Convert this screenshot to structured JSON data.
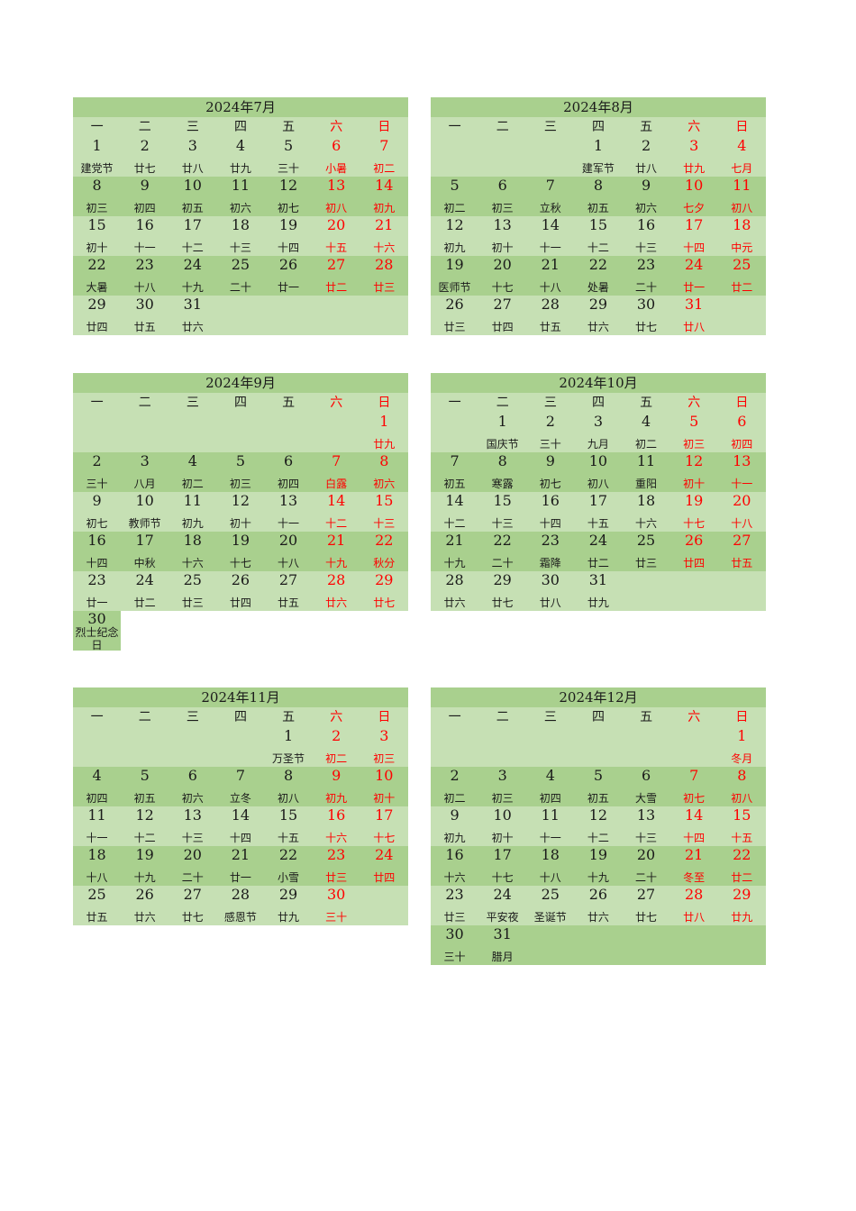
{
  "weekday_headers": [
    "一",
    "二",
    "三",
    "四",
    "五",
    "六",
    "日"
  ],
  "months": [
    {
      "title": "2024年7月",
      "weeks": [
        [
          [
            "1",
            "建党节"
          ],
          [
            "2",
            "廿七"
          ],
          [
            "3",
            "廿八"
          ],
          [
            "4",
            "廿九"
          ],
          [
            "5",
            "三十"
          ],
          [
            "6",
            "小暑"
          ],
          [
            "7",
            "初二"
          ]
        ],
        [
          [
            "8",
            "初三"
          ],
          [
            "9",
            "初四"
          ],
          [
            "10",
            "初五"
          ],
          [
            "11",
            "初六"
          ],
          [
            "12",
            "初七"
          ],
          [
            "13",
            "初八"
          ],
          [
            "14",
            "初九"
          ]
        ],
        [
          [
            "15",
            "初十"
          ],
          [
            "16",
            "十一"
          ],
          [
            "17",
            "十二"
          ],
          [
            "18",
            "十三"
          ],
          [
            "19",
            "十四"
          ],
          [
            "20",
            "十五"
          ],
          [
            "21",
            "十六"
          ]
        ],
        [
          [
            "22",
            "大暑"
          ],
          [
            "23",
            "十八"
          ],
          [
            "24",
            "十九"
          ],
          [
            "25",
            "二十"
          ],
          [
            "26",
            "廿一"
          ],
          [
            "27",
            "廿二"
          ],
          [
            "28",
            "廿三"
          ]
        ],
        [
          [
            "29",
            "廿四"
          ],
          [
            "30",
            "廿五"
          ],
          [
            "31",
            "廿六"
          ],
          null,
          null,
          null,
          null
        ]
      ]
    },
    {
      "title": "2024年8月",
      "weeks": [
        [
          null,
          null,
          null,
          [
            "1",
            "建军节"
          ],
          [
            "2",
            "廿八"
          ],
          [
            "3",
            "廿九"
          ],
          [
            "4",
            "七月"
          ]
        ],
        [
          [
            "5",
            "初二"
          ],
          [
            "6",
            "初三"
          ],
          [
            "7",
            "立秋"
          ],
          [
            "8",
            "初五"
          ],
          [
            "9",
            "初六"
          ],
          [
            "10",
            "七夕"
          ],
          [
            "11",
            "初八"
          ]
        ],
        [
          [
            "12",
            "初九"
          ],
          [
            "13",
            "初十"
          ],
          [
            "14",
            "十一"
          ],
          [
            "15",
            "十二"
          ],
          [
            "16",
            "十三"
          ],
          [
            "17",
            "十四"
          ],
          [
            "18",
            "中元"
          ]
        ],
        [
          [
            "19",
            "医师节"
          ],
          [
            "20",
            "十七"
          ],
          [
            "21",
            "十八"
          ],
          [
            "22",
            "处暑"
          ],
          [
            "23",
            "二十"
          ],
          [
            "24",
            "廿一"
          ],
          [
            "25",
            "廿二"
          ]
        ],
        [
          [
            "26",
            "廿三"
          ],
          [
            "27",
            "廿四"
          ],
          [
            "28",
            "廿五"
          ],
          [
            "29",
            "廿六"
          ],
          [
            "30",
            "廿七"
          ],
          [
            "31",
            "廿八"
          ],
          null
        ]
      ]
    },
    {
      "title": "2024年9月",
      "weeks": [
        [
          null,
          null,
          null,
          null,
          null,
          null,
          [
            "1",
            "廿九"
          ]
        ],
        [
          [
            "2",
            "三十"
          ],
          [
            "3",
            "八月"
          ],
          [
            "4",
            "初二"
          ],
          [
            "5",
            "初三"
          ],
          [
            "6",
            "初四"
          ],
          [
            "7",
            "白露"
          ],
          [
            "8",
            "初六"
          ]
        ],
        [
          [
            "9",
            "初七"
          ],
          [
            "10",
            "教师节"
          ],
          [
            "11",
            "初九"
          ],
          [
            "12",
            "初十"
          ],
          [
            "13",
            "十一"
          ],
          [
            "14",
            "十二"
          ],
          [
            "15",
            "十三"
          ]
        ],
        [
          [
            "16",
            "十四"
          ],
          [
            "17",
            "中秋"
          ],
          [
            "18",
            "十六"
          ],
          [
            "19",
            "十七"
          ],
          [
            "20",
            "十八"
          ],
          [
            "21",
            "十九"
          ],
          [
            "22",
            "秋分"
          ]
        ],
        [
          [
            "23",
            "廿一"
          ],
          [
            "24",
            "廿二"
          ],
          [
            "25",
            "廿三"
          ],
          [
            "26",
            "廿四"
          ],
          [
            "27",
            "廿五"
          ],
          [
            "28",
            "廿六"
          ],
          [
            "29",
            "廿七"
          ]
        ]
      ],
      "extra": [
        "30",
        "烈士纪念日"
      ]
    },
    {
      "title": "2024年10月",
      "weeks": [
        [
          null,
          [
            "1",
            "国庆节"
          ],
          [
            "2",
            "三十"
          ],
          [
            "3",
            "九月"
          ],
          [
            "4",
            "初二"
          ],
          [
            "5",
            "初三"
          ],
          [
            "6",
            "初四"
          ]
        ],
        [
          [
            "7",
            "初五"
          ],
          [
            "8",
            "寒露"
          ],
          [
            "9",
            "初七"
          ],
          [
            "10",
            "初八"
          ],
          [
            "11",
            "重阳"
          ],
          [
            "12",
            "初十"
          ],
          [
            "13",
            "十一"
          ]
        ],
        [
          [
            "14",
            "十二"
          ],
          [
            "15",
            "十三"
          ],
          [
            "16",
            "十四"
          ],
          [
            "17",
            "十五"
          ],
          [
            "18",
            "十六"
          ],
          [
            "19",
            "十七"
          ],
          [
            "20",
            "十八"
          ]
        ],
        [
          [
            "21",
            "十九"
          ],
          [
            "22",
            "二十"
          ],
          [
            "23",
            "霜降"
          ],
          [
            "24",
            "廿二"
          ],
          [
            "25",
            "廿三"
          ],
          [
            "26",
            "廿四"
          ],
          [
            "27",
            "廿五"
          ]
        ],
        [
          [
            "28",
            "廿六"
          ],
          [
            "29",
            "廿七"
          ],
          [
            "30",
            "廿八"
          ],
          [
            "31",
            "廿九"
          ],
          null,
          null,
          null
        ]
      ]
    },
    {
      "title": "2024年11月",
      "weeks": [
        [
          null,
          null,
          null,
          null,
          [
            "1",
            "万圣节"
          ],
          [
            "2",
            "初二"
          ],
          [
            "3",
            "初三"
          ]
        ],
        [
          [
            "4",
            "初四"
          ],
          [
            "5",
            "初五"
          ],
          [
            "6",
            "初六"
          ],
          [
            "7",
            "立冬"
          ],
          [
            "8",
            "初八"
          ],
          [
            "9",
            "初九"
          ],
          [
            "10",
            "初十"
          ]
        ],
        [
          [
            "11",
            "十一"
          ],
          [
            "12",
            "十二"
          ],
          [
            "13",
            "十三"
          ],
          [
            "14",
            "十四"
          ],
          [
            "15",
            "十五"
          ],
          [
            "16",
            "十六"
          ],
          [
            "17",
            "十七"
          ]
        ],
        [
          [
            "18",
            "十八"
          ],
          [
            "19",
            "十九"
          ],
          [
            "20",
            "二十"
          ],
          [
            "21",
            "廿一"
          ],
          [
            "22",
            "小雪"
          ],
          [
            "23",
            "廿三"
          ],
          [
            "24",
            "廿四"
          ]
        ],
        [
          [
            "25",
            "廿五"
          ],
          [
            "26",
            "廿六"
          ],
          [
            "27",
            "廿七"
          ],
          [
            "28",
            "感恩节"
          ],
          [
            "29",
            "廿九"
          ],
          [
            "30",
            "三十"
          ],
          null
        ]
      ]
    },
    {
      "title": "2024年12月",
      "weeks": [
        [
          null,
          null,
          null,
          null,
          null,
          null,
          [
            "1",
            "冬月"
          ]
        ],
        [
          [
            "2",
            "初二"
          ],
          [
            "3",
            "初三"
          ],
          [
            "4",
            "初四"
          ],
          [
            "5",
            "初五"
          ],
          [
            "6",
            "大雪"
          ],
          [
            "7",
            "初七"
          ],
          [
            "8",
            "初八"
          ]
        ],
        [
          [
            "9",
            "初九"
          ],
          [
            "10",
            "初十"
          ],
          [
            "11",
            "十一"
          ],
          [
            "12",
            "十二"
          ],
          [
            "13",
            "十三"
          ],
          [
            "14",
            "十四"
          ],
          [
            "15",
            "十五"
          ]
        ],
        [
          [
            "16",
            "十六"
          ],
          [
            "17",
            "十七"
          ],
          [
            "18",
            "十八"
          ],
          [
            "19",
            "十九"
          ],
          [
            "20",
            "二十"
          ],
          [
            "21",
            "冬至"
          ],
          [
            "22",
            "廿二"
          ]
        ],
        [
          [
            "23",
            "廿三"
          ],
          [
            "24",
            "平安夜"
          ],
          [
            "25",
            "圣诞节"
          ],
          [
            "26",
            "廿六"
          ],
          [
            "27",
            "廿七"
          ],
          [
            "28",
            "廿八"
          ],
          [
            "29",
            "廿九"
          ]
        ],
        [
          [
            "30",
            "三十"
          ],
          [
            "31",
            "腊月"
          ],
          null,
          null,
          null,
          null,
          null
        ]
      ]
    }
  ],
  "colors": {
    "title_bg": "#a9d08e",
    "row_light": "#c6e0b4",
    "row_dark": "#a9d08e",
    "weekend": "#ff0000"
  }
}
